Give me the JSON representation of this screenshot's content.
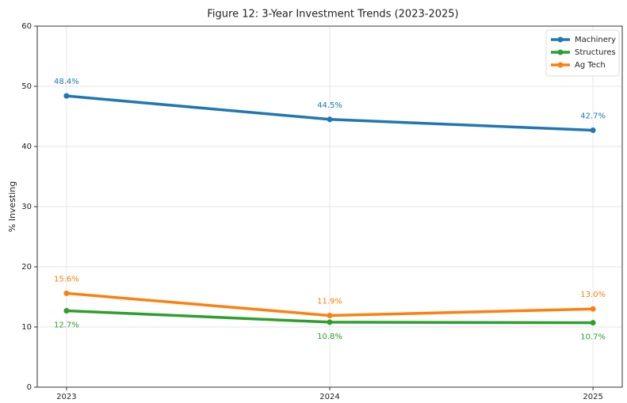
{
  "chart_data": {
    "type": "line",
    "title": "Figure 12: 3-Year Investment Trends (2023-2025)",
    "y_label": "% Investing",
    "categories": [
      "2023",
      "2024",
      "2025"
    ],
    "series": [
      {
        "name": "Machinery",
        "color": "#1f77b4",
        "values": [
          48.4,
          44.5,
          42.7
        ],
        "value_labels": [
          "48.4%",
          "44.5%",
          "42.7%"
        ]
      },
      {
        "name": "Structures",
        "color": "#2ca02c",
        "values": [
          12.7,
          10.8,
          10.7
        ],
        "value_labels": [
          "12.7%",
          "10.8%",
          "10.7%"
        ]
      },
      {
        "name": "Ag Tech",
        "color": "#ff7f0e",
        "values": [
          15.6,
          11.9,
          13.0
        ],
        "value_labels": [
          "15.6%",
          "11.9%",
          "13.0%"
        ]
      }
    ],
    "ylim": [
      0,
      60
    ],
    "yticks": [
      0,
      10,
      20,
      30,
      40,
      50,
      60
    ],
    "grid": true,
    "legend": "upper right"
  }
}
